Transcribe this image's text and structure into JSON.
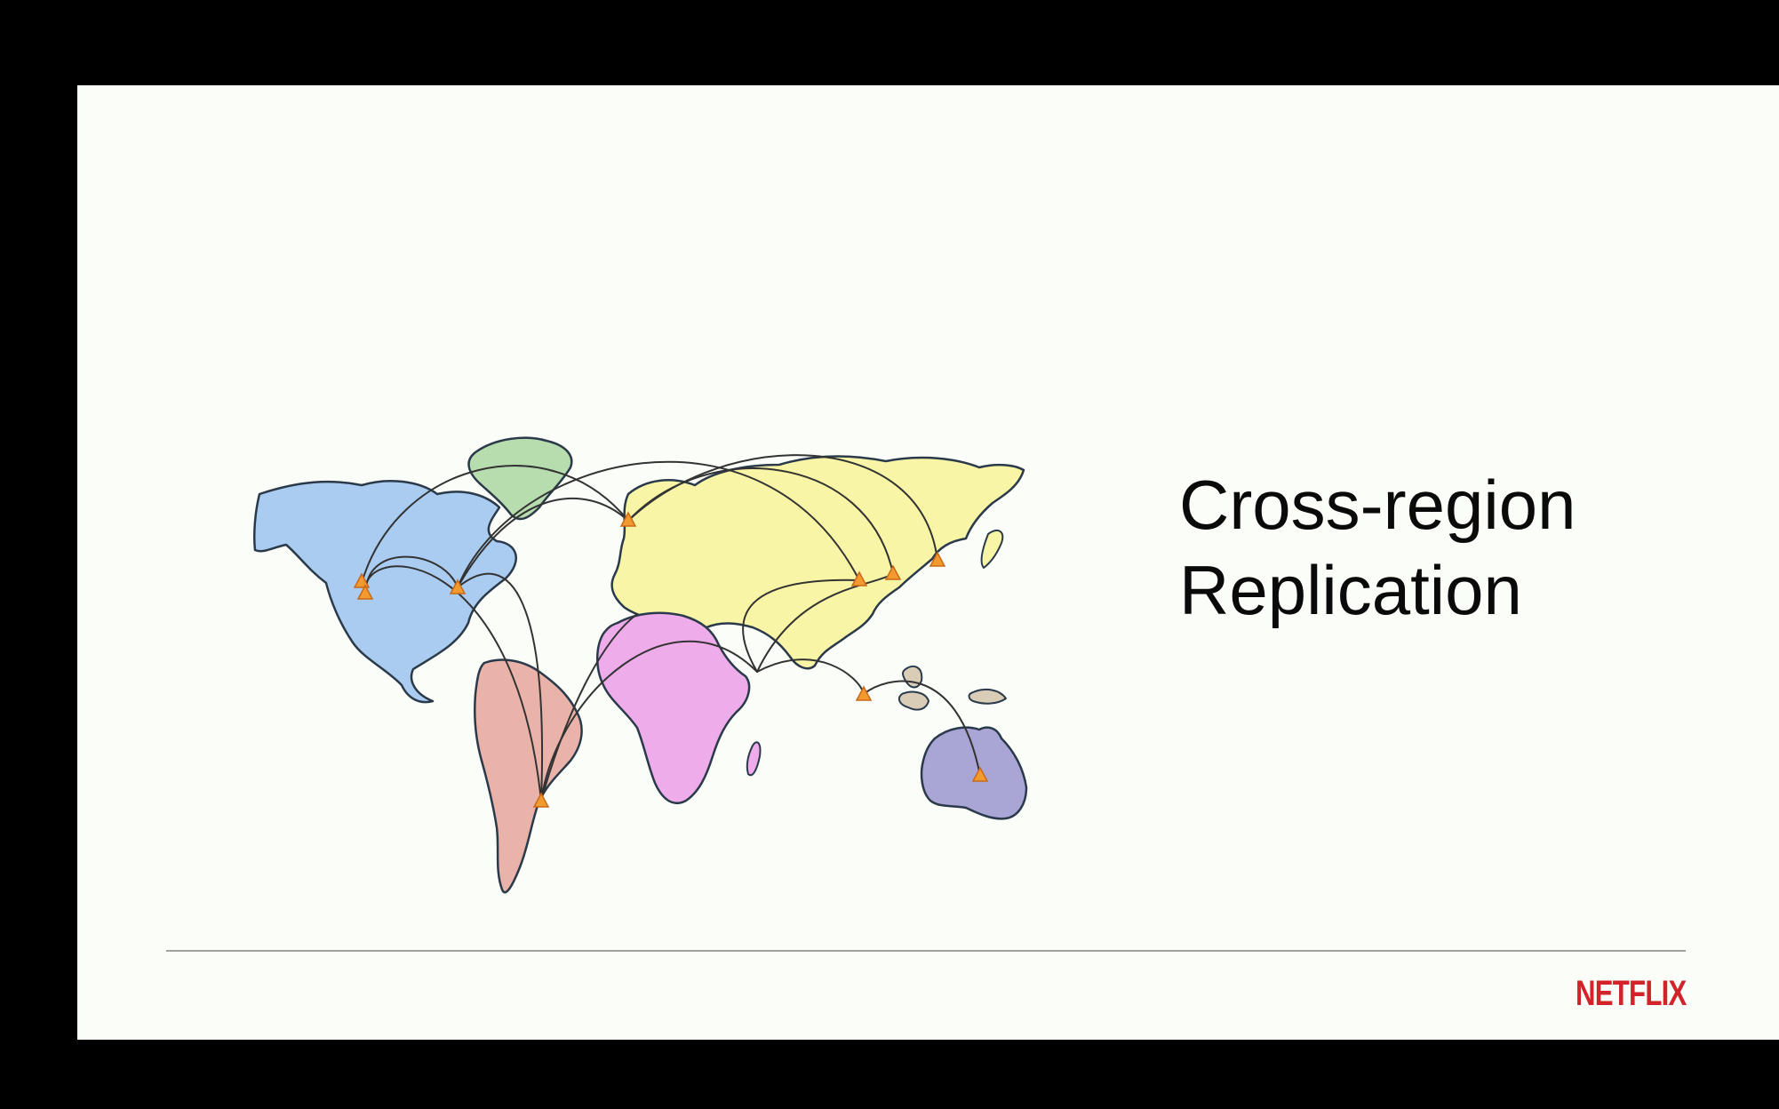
{
  "slide": {
    "title_lines": [
      "Cross-region",
      "Replication"
    ],
    "brand": "NETFLIX"
  },
  "colors": {
    "background": "#fbfdf8",
    "north_america": "#a9ccf0",
    "greenland": "#b7dcae",
    "south_america": "#eab3aa",
    "eurasia": "#f8f6a6",
    "africa": "#eeaceb",
    "australia": "#a9a6d6",
    "islands": "#d9cdb8",
    "region_marker": "#f29a2e",
    "replication_link": "#333333",
    "brand": "#d2232a"
  },
  "map": {
    "region_marker_icon": "triangle-marker-icon",
    "region_count": 10,
    "link_count": 14
  }
}
